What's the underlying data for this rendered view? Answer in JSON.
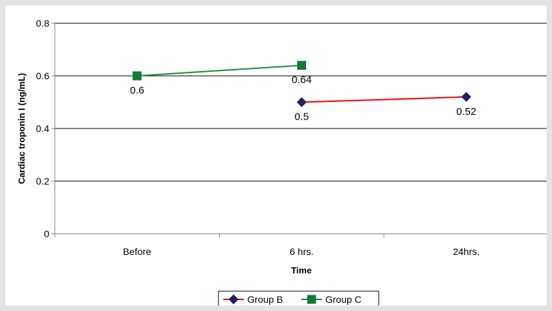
{
  "chart_data": {
    "type": "line",
    "title": "",
    "xlabel": "Time",
    "ylabel": "Cardiac troponin I (ng/mL)",
    "categories": [
      "Before",
      "6 hrs.",
      "24hrs."
    ],
    "ylim": [
      0,
      0.8
    ],
    "yticks": [
      "0",
      "0.2",
      "0.4",
      "0.6",
      "0.8"
    ],
    "grid": true,
    "legend_position": "bottom",
    "series": [
      {
        "name": "Group B",
        "values": [
          null,
          0.5,
          0.52
        ],
        "labels": [
          null,
          "0.5",
          "0.52"
        ],
        "line_color": "#ff0000",
        "marker_color": "#1f1f6e",
        "marker": "diamond"
      },
      {
        "name": "Group C",
        "values": [
          0.6,
          0.64,
          null
        ],
        "labels": [
          "0.6",
          "0.64",
          null
        ],
        "line_color": "#1e8c3a",
        "marker_color": "#157a3a",
        "marker": "square"
      }
    ]
  }
}
